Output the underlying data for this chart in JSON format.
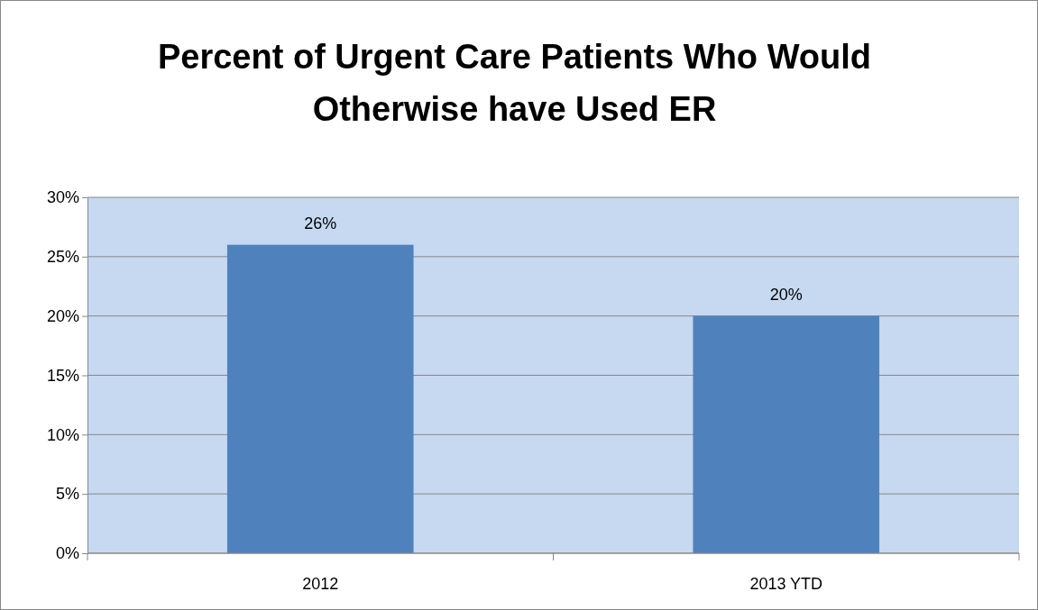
{
  "chart_data": {
    "type": "bar",
    "title": "Percent of Urgent Care Patients Who Would Otherwise have Used ER",
    "categories": [
      "2012",
      "2013 YTD"
    ],
    "values": [
      26,
      20
    ],
    "color": "#4f81bd",
    "value_labels": [
      "26%",
      "20%"
    ],
    "ylim": [
      0,
      30
    ],
    "yticks": [
      {
        "value": 0,
        "label": "0%"
      },
      {
        "value": 5,
        "label": "5%"
      },
      {
        "value": 10,
        "label": "10%"
      },
      {
        "value": 15,
        "label": "15%"
      },
      {
        "value": 20,
        "label": "20%"
      },
      {
        "value": 25,
        "label": "25%"
      },
      {
        "value": 30,
        "label": "30%"
      }
    ],
    "grid": "y"
  }
}
